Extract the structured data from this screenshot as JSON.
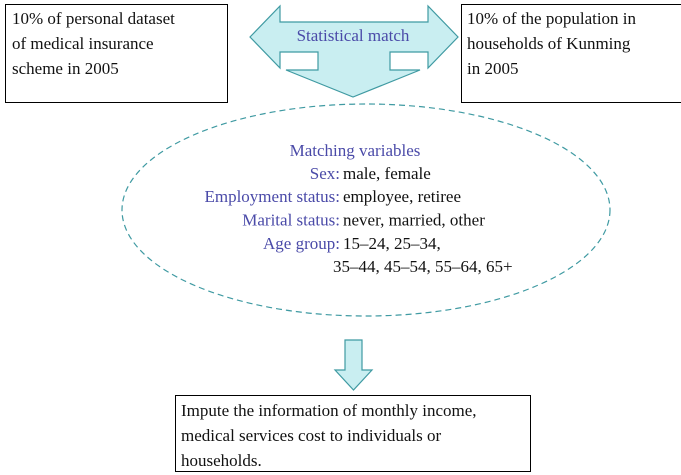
{
  "left_box": {
    "lines": [
      "10% of personal dataset",
      "of medical insurance",
      "scheme in 2005"
    ]
  },
  "right_box": {
    "lines": [
      "10% of the population in",
      "households of Kunming",
      "in 2005"
    ]
  },
  "arrow_label": "Statistical match",
  "ellipse": {
    "title": "Matching variables",
    "variables": [
      {
        "label": "Sex:",
        "values": [
          "male, female"
        ]
      },
      {
        "label": "Employment status:",
        "values": [
          "employee, retiree"
        ]
      },
      {
        "label": "Marital status:",
        "values": [
          "never, married, other"
        ]
      },
      {
        "label": "Age group:",
        "values": [
          "15–24, 25–34,",
          "35–44, 45–54, 55–64, 65+"
        ]
      }
    ]
  },
  "bottom_box": {
    "lines": [
      "Impute the information of monthly income,",
      "medical services cost to individuals or",
      "households."
    ]
  }
}
